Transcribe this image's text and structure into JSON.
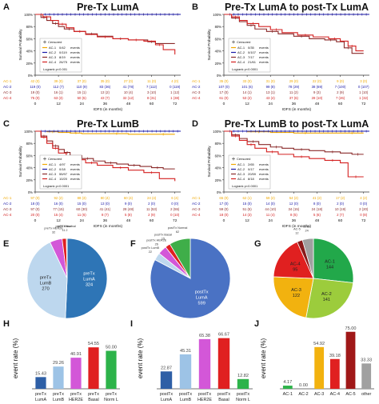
{
  "chart_data": [
    {
      "letter": "A",
      "type": "line",
      "title": "Pre-Tx LumA",
      "ylabel": "Survival Probability",
      "xlabel": "IDFS (in months)",
      "xlim": [
        0,
        75
      ],
      "ylim": [
        0,
        100
      ],
      "xticks": [
        0,
        12,
        24,
        36,
        48,
        60,
        72
      ],
      "yticks": [
        "0%",
        "20%",
        "40%",
        "60%",
        "80%",
        "100%"
      ],
      "legend": {
        "placement": "bottom-left",
        "censored_label": "Censored",
        "items": [
          {
            "label": "AC-1",
            "events": "0/42",
            "suffix": "events",
            "color": "#f0a800"
          },
          {
            "label": "AC-2",
            "events": "0/119",
            "suffix": "events",
            "color": "#1a1aa8"
          },
          {
            "label": "AC-3",
            "events": "8/19",
            "suffix": "events",
            "color": "#8a2a2a"
          },
          {
            "label": "AC-4",
            "events": "26/75",
            "suffix": "events",
            "color": "#d42020"
          }
        ],
        "logrank": "Logrank p<0.001"
      },
      "series": [
        {
          "name": "AC-1",
          "x": [
            0,
            75
          ],
          "y": [
            100,
            100
          ]
        },
        {
          "name": "AC-2",
          "x": [
            0,
            75
          ],
          "y": [
            100,
            100
          ]
        },
        {
          "name": "AC-3",
          "x": [
            0,
            3,
            6,
            9,
            12,
            15,
            20,
            26,
            32,
            40,
            48,
            58,
            62,
            72
          ],
          "y": [
            100,
            95,
            90,
            85,
            80,
            76,
            72,
            68,
            64,
            60,
            58,
            55,
            52,
            52
          ]
        },
        {
          "name": "AC-4",
          "x": [
            0,
            4,
            8,
            12,
            16,
            20,
            26,
            32,
            40,
            48,
            56,
            62,
            66,
            72
          ],
          "y": [
            100,
            96,
            90,
            84,
            78,
            72,
            67,
            63,
            60,
            58,
            56,
            50,
            42,
            34
          ]
        }
      ],
      "risk_table": [
        {
          "label": "AC-1",
          "values": [
            "42 (0)",
            "39 (0)",
            "37 (0)",
            "35 (0)",
            "27 (0)",
            "11 (0)",
            "4 (0)"
          ]
        },
        {
          "label": "AC-2",
          "values": [
            "119 (0)",
            "112 (7)",
            "110 (9)",
            "83 (36)",
            "41 (78)",
            "7 (112)",
            "0 (119)"
          ]
        },
        {
          "label": "AC-3",
          "values": [
            "19 (0)",
            "16 (1)",
            "15 (1)",
            "13 (2)",
            "10 (4)",
            "3 (10)",
            "1 (12)"
          ]
        },
        {
          "label": "AC-4",
          "values": [
            "75 (0)",
            "63 (3)",
            "50 (5)",
            "43 (7)",
            "32 (12)",
            "8 (31)",
            "1 (38)"
          ]
        }
      ]
    },
    {
      "letter": "B",
      "type": "line",
      "title": "Pre-Tx LumA to post-Tx LumA",
      "ylabel": "Survival Probability",
      "xlabel": "IDFS (in months)",
      "xlim": [
        0,
        75
      ],
      "ylim": [
        0,
        100
      ],
      "xticks": [
        0,
        12,
        24,
        36,
        48,
        60,
        72
      ],
      "yticks": [
        "0%",
        "20%",
        "40%",
        "60%",
        "80%",
        "100%"
      ],
      "legend": {
        "placement": "bottom-left",
        "censored_label": "Censored",
        "items": [
          {
            "label": "AC-1",
            "events": "0/35",
            "suffix": "events",
            "color": "#f0a800"
          },
          {
            "label": "AC-2",
            "events": "0/107",
            "suffix": "events",
            "color": "#1a1aa8"
          },
          {
            "label": "AC-3",
            "events": "7/17",
            "suffix": "events",
            "color": "#8a2a2a"
          },
          {
            "label": "AC-4",
            "events": "21/61",
            "suffix": "events",
            "color": "#d42020"
          }
        ],
        "logrank": "Logrank p<0.0001"
      },
      "series": [
        {
          "name": "AC-1",
          "x": [
            0,
            75
          ],
          "y": [
            100,
            100
          ]
        },
        {
          "name": "AC-2",
          "x": [
            0,
            75
          ],
          "y": [
            100,
            100
          ]
        },
        {
          "name": "AC-3",
          "x": [
            0,
            4,
            8,
            12,
            16,
            22,
            28,
            36,
            44,
            52,
            58,
            62,
            66,
            72
          ],
          "y": [
            100,
            94,
            88,
            82,
            76,
            72,
            68,
            64,
            60,
            58,
            55,
            45,
            36,
            36
          ]
        },
        {
          "name": "AC-4",
          "x": [
            0,
            4,
            8,
            12,
            18,
            24,
            30,
            38,
            46,
            54,
            60,
            64,
            68,
            72
          ],
          "y": [
            100,
            96,
            90,
            85,
            80,
            75,
            70,
            66,
            63,
            60,
            56,
            48,
            40,
            40
          ]
        }
      ],
      "risk_table": [
        {
          "label": "AC-1",
          "values": [
            "35 (0)",
            "33 (0)",
            "31 (0)",
            "29 (0)",
            "22 (0)",
            "9 (0)",
            "3 (0)"
          ]
        },
        {
          "label": "AC-2",
          "values": [
            "107 (0)",
            "101 (6)",
            "99 (8)",
            "78 (29)",
            "38 (69)",
            "7 (100)",
            "0 (107)"
          ]
        },
        {
          "label": "AC-3",
          "values": [
            "17 (0)",
            "14 (1)",
            "13 (1)",
            "11 (2)",
            "9 (3)",
            "2 (9)",
            "1 (10)"
          ]
        },
        {
          "label": "AC-4",
          "values": [
            "61 (0)",
            "53 (2)",
            "43 (4)",
            "37 (6)",
            "28 (10)",
            "7 (26)",
            "1 (32)"
          ]
        }
      ]
    },
    {
      "letter": "C",
      "type": "line",
      "title": "Pre-Tx LumB",
      "ylabel": "Survival Probability",
      "xlabel": "IDFS (in months)",
      "xlim": [
        0,
        75
      ],
      "ylim": [
        0,
        100
      ],
      "xticks": [
        0,
        12,
        24,
        36,
        48,
        60,
        72
      ],
      "yticks": [
        "0%",
        "20%",
        "40%",
        "60%",
        "80%",
        "100%"
      ],
      "legend": {
        "placement": "bottom-left",
        "censored_label": "Censored",
        "items": [
          {
            "label": "AC-1",
            "events": "4/97",
            "suffix": "events",
            "color": "#f0a800"
          },
          {
            "label": "AC-2",
            "events": "0/18",
            "suffix": "events",
            "color": "#1a1aa8"
          },
          {
            "label": "AC-3",
            "events": "55/97",
            "suffix": "events",
            "color": "#8a2a2a"
          },
          {
            "label": "AC-4",
            "events": "10/20",
            "suffix": "events",
            "color": "#d42020"
          }
        ],
        "logrank": "Logrank p<0.0001"
      },
      "series": [
        {
          "name": "AC-1",
          "x": [
            0,
            6,
            12,
            18,
            24,
            36,
            48,
            60,
            72
          ],
          "y": [
            100,
            99,
            98,
            97,
            96,
            96,
            95,
            95,
            95
          ]
        },
        {
          "name": "AC-2",
          "x": [
            0,
            75
          ],
          "y": [
            100,
            100
          ]
        },
        {
          "name": "AC-3",
          "x": [
            0,
            3,
            6,
            9,
            12,
            15,
            18,
            24,
            30,
            36,
            42,
            48,
            54,
            60,
            66,
            72
          ],
          "y": [
            100,
            92,
            84,
            76,
            70,
            65,
            60,
            55,
            51,
            48,
            46,
            44,
            42,
            40,
            38,
            38
          ]
        },
        {
          "name": "AC-4",
          "x": [
            0,
            3,
            6,
            9,
            12,
            16,
            20,
            26,
            32,
            40,
            48,
            56,
            64,
            72
          ],
          "y": [
            100,
            90,
            80,
            72,
            64,
            58,
            53,
            48,
            44,
            40,
            36,
            32,
            22,
            18
          ]
        }
      ],
      "risk_table": [
        {
          "label": "AC-1",
          "values": [
            "97 (0)",
            "92 (2)",
            "88 (3)",
            "80 (4)",
            "60 (4)",
            "24 (4)",
            "6 (4)"
          ]
        },
        {
          "label": "AC-2",
          "values": [
            "18 (0)",
            "16 (0)",
            "15 (0)",
            "13 (0)",
            "9 (0)",
            "2 (0)",
            "0 (0)"
          ]
        },
        {
          "label": "AC-3",
          "values": [
            "97 (0)",
            "77 (15)",
            "60 (30)",
            "41 (41)",
            "28 (48)",
            "11 (53)",
            "2 (55)"
          ]
        },
        {
          "label": "AC-4",
          "values": [
            "20 (0)",
            "15 (4)",
            "11 (6)",
            "8 (7)",
            "5 (8)",
            "2 (9)",
            "0 (10)"
          ]
        }
      ]
    },
    {
      "letter": "D",
      "type": "line",
      "title": "Pre-Tx LumB to post-Tx LumA",
      "ylabel": "Survival Probability",
      "xlabel": "IDFS (in months)",
      "xlim": [
        0,
        75
      ],
      "ylim": [
        0,
        100
      ],
      "xticks": [
        0,
        12,
        24,
        36,
        48,
        60,
        72
      ],
      "yticks": [
        "0%",
        "20%",
        "40%",
        "60%",
        "80%",
        "100%"
      ],
      "legend": {
        "placement": "bottom-left",
        "censored_label": "Censored",
        "items": [
          {
            "label": "AC-1",
            "events": "2/65",
            "suffix": "events",
            "color": "#f0a800"
          },
          {
            "label": "AC-2",
            "events": "0/17",
            "suffix": "events",
            "color": "#1a1aa8"
          },
          {
            "label": "AC-3",
            "events": "20/59",
            "suffix": "events",
            "color": "#8a2a2a"
          },
          {
            "label": "AC-4",
            "events": "8/18",
            "suffix": "events",
            "color": "#d42020"
          }
        ],
        "logrank": "Logrank p<0.0001"
      },
      "series": [
        {
          "name": "AC-1",
          "x": [
            0,
            12,
            24,
            36,
            48,
            60,
            72
          ],
          "y": [
            100,
            99,
            98,
            97,
            97,
            97,
            97
          ]
        },
        {
          "name": "AC-2",
          "x": [
            0,
            75
          ],
          "y": [
            100,
            100
          ]
        },
        {
          "name": "AC-3",
          "x": [
            0,
            4,
            8,
            12,
            18,
            24,
            30,
            36,
            44,
            52,
            60,
            66,
            72
          ],
          "y": [
            100,
            94,
            88,
            83,
            78,
            74,
            72,
            70,
            68,
            66,
            64,
            62,
            62
          ]
        },
        {
          "name": "AC-4",
          "x": [
            0,
            4,
            8,
            12,
            16,
            22,
            28,
            36,
            44,
            52,
            60,
            64,
            72
          ],
          "y": [
            100,
            92,
            85,
            78,
            72,
            66,
            62,
            58,
            55,
            52,
            48,
            25,
            25
          ]
        }
      ],
      "risk_table": [
        {
          "label": "AC-1",
          "values": [
            "65 (0)",
            "62 (1)",
            "59 (2)",
            "54 (2)",
            "41 (2)",
            "17 (2)",
            "4 (2)"
          ]
        },
        {
          "label": "AC-2",
          "values": [
            "17 (0)",
            "15 (0)",
            "14 (0)",
            "12 (0)",
            "8 (0)",
            "2 (0)",
            "0 (0)"
          ]
        },
        {
          "label": "AC-3",
          "values": [
            "59 (0)",
            "51 (5)",
            "44 (10)",
            "34 (15)",
            "24 (18)",
            "10 (19)",
            "2 (20)"
          ]
        },
        {
          "label": "AC-4",
          "values": [
            "18 (0)",
            "14 (3)",
            "11 (4)",
            "8 (5)",
            "5 (6)",
            "2 (7)",
            "0 (8)"
          ]
        }
      ]
    },
    {
      "letter": "E",
      "type": "pie",
      "slices": [
        {
          "label": "preTx LumA",
          "value": 324,
          "color": "#2e75b6"
        },
        {
          "label": "preTx LumB",
          "value": 270,
          "color": "#bdd7ee"
        },
        {
          "label": "preTx HER2E",
          "value": 32,
          "color": "#d357d8"
        },
        {
          "label": "preTx Basal",
          "value": 11,
          "color": "#e02020"
        },
        {
          "label": "preTx Normal",
          "value": 2,
          "color": "#3fae49"
        }
      ]
    },
    {
      "letter": "F",
      "type": "pie",
      "slices": [
        {
          "label": "postTx LumA",
          "value": 599,
          "color": "#4a72c4"
        },
        {
          "label": "postTx LumB",
          "value": 22,
          "color": "#bdd7ee"
        },
        {
          "label": "postTx HER2E",
          "value": 26,
          "color": "#d357d8"
        },
        {
          "label": "postTx Basal",
          "value": 15,
          "color": "#e02020"
        },
        {
          "label": "postTx Normal",
          "value": 62,
          "color": "#3fae49"
        }
      ]
    },
    {
      "letter": "G",
      "type": "pie",
      "slices": [
        {
          "label": "AC-1",
          "value": 144,
          "color": "#22a84a"
        },
        {
          "label": "AC-2",
          "value": 141,
          "color": "#9ccc3c"
        },
        {
          "label": "AC-3",
          "value": 122,
          "color": "#f2b20f"
        },
        {
          "label": "AC-4",
          "value": 95,
          "color": "#e02020"
        },
        {
          "label": "AC-5",
          "value": 12,
          "color": "#8a1a1a"
        },
        {
          "label": "other",
          "value": 24,
          "color": "#a0a0a0"
        }
      ]
    },
    {
      "letter": "H",
      "type": "bar",
      "ylabel": "event rate (%)",
      "categories": [
        [
          "preTx",
          "LumA"
        ],
        [
          "preTx",
          "LumB"
        ],
        [
          "preTx",
          "HER2E"
        ],
        [
          "preTx",
          "Basal"
        ],
        [
          "preTx",
          "Norm L"
        ]
      ],
      "values": [
        15.43,
        29.26,
        40.91,
        54.55,
        50.0
      ],
      "labels": [
        "15.43",
        "29.26",
        "40.91",
        "54.55",
        "50.00"
      ],
      "colors": [
        "#2e5fa6",
        "#9dc3e6",
        "#d357d8",
        "#e02020",
        "#2db34a"
      ],
      "ylim": [
        0,
        80
      ]
    },
    {
      "letter": "I",
      "type": "bar",
      "ylabel": "event rate (%)",
      "categories": [
        [
          "postTx",
          "LumA"
        ],
        [
          "postTx",
          "LumB"
        ],
        [
          "postTx",
          "HER2E"
        ],
        [
          "postTx",
          "Basal"
        ],
        [
          "postTx",
          "Norm L"
        ]
      ],
      "values": [
        22.87,
        45.31,
        65.38,
        66.67,
        12.82
      ],
      "labels": [
        "22.87",
        "45.31",
        "65.38",
        "66.67",
        "12.82"
      ],
      "colors": [
        "#2e5fa6",
        "#9dc3e6",
        "#d357d8",
        "#e02020",
        "#2db34a"
      ],
      "ylim": [
        0,
        80
      ]
    },
    {
      "letter": "J",
      "type": "bar",
      "ylabel": "event rate (%)",
      "categories": [
        [
          "AC-1"
        ],
        [
          "AC-2"
        ],
        [
          "AC-3"
        ],
        [
          "AC-4"
        ],
        [
          "AC-5"
        ],
        [
          "other"
        ]
      ],
      "values": [
        4.17,
        0.0,
        54.92,
        39.18,
        75.0,
        33.33
      ],
      "labels": [
        "4.17",
        "0.00",
        "54.92",
        "39.18",
        "75.00",
        "33.33"
      ],
      "colors": [
        "#2db34a",
        "#9ccc3c",
        "#f2b20f",
        "#e02020",
        "#a01818",
        "#a0a0a0"
      ],
      "ylim": [
        0,
        80
      ]
    }
  ]
}
